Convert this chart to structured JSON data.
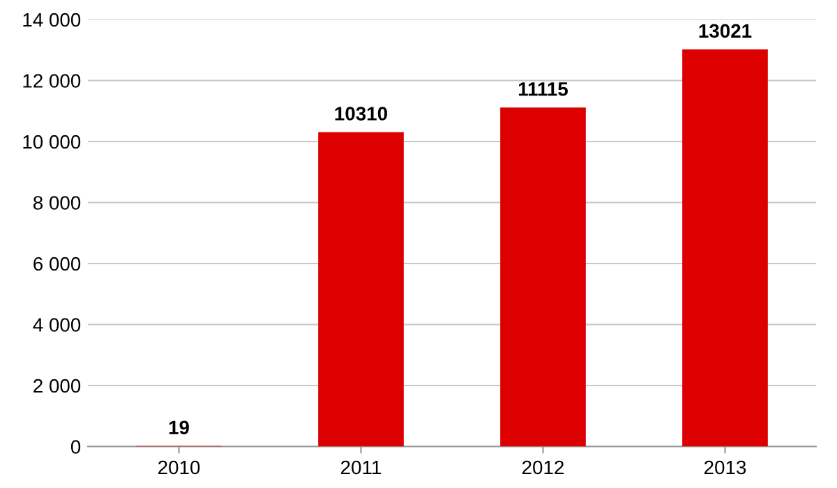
{
  "chart_data": {
    "type": "bar",
    "categories": [
      "2010",
      "2011",
      "2012",
      "2013"
    ],
    "values": [
      19,
      10310,
      11115,
      13021
    ],
    "color": "#dd0000",
    "data_labels": true,
    "ylim": [
      0,
      14000
    ],
    "yticks": [
      0,
      {
        "value": 2000,
        "label": "2 000"
      },
      {
        "value": 4000,
        "label": "4 000"
      },
      {
        "value": 6000,
        "label": "6 000"
      },
      {
        "value": 8000,
        "label": "8 000"
      },
      {
        "value": 10000,
        "label": "10 000"
      },
      {
        "value": 12000,
        "label": "12 000"
      },
      {
        "value": 14000,
        "label": "14 000"
      }
    ],
    "grid": "y",
    "legend": false
  }
}
